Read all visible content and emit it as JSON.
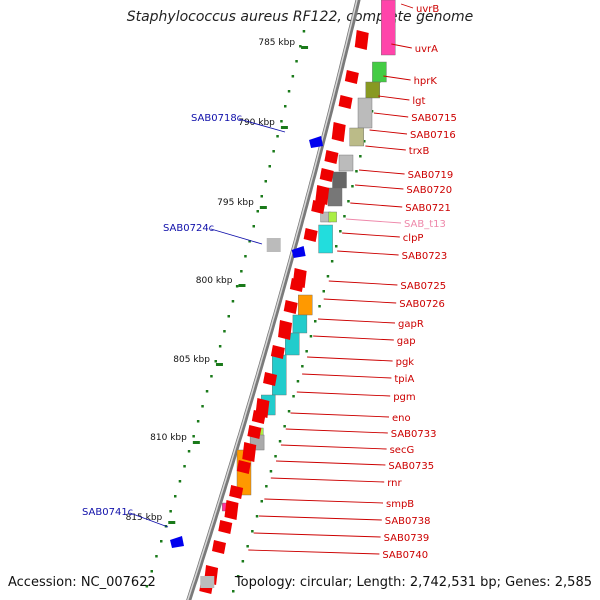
{
  "title": "Staphylococcus aureus RF122, complete genome",
  "footer": {
    "accession": "Accession: NC_007622",
    "topology": "Topology: circular; Length: 2,742,531 bp; Genes: 2,585"
  },
  "colors": {
    "background": "#ffffff",
    "forward_gene": "#ee0000",
    "label_forward": "#cc0000",
    "label_reverse": "#1010aa",
    "trna_label": "#ee88aa",
    "tick": "#1a7a1a",
    "backbone": "#888888"
  },
  "scale_labels": [
    "785 kbp",
    "790 kbp",
    "795 kbp",
    "800 kbp",
    "805 kbp",
    "810 kbp",
    "815 kbp"
  ],
  "genes_right": [
    {
      "label": "uvrB",
      "color": "#cc0000"
    },
    {
      "label": "uvrA",
      "color": "#cc0000"
    },
    {
      "label": "hprK",
      "color": "#cc0000"
    },
    {
      "label": "lgt",
      "color": "#cc0000"
    },
    {
      "label": "SAB0715",
      "color": "#cc0000"
    },
    {
      "label": "SAB0716",
      "color": "#cc0000"
    },
    {
      "label": "trxB",
      "color": "#cc0000"
    },
    {
      "label": "SAB0719",
      "color": "#cc0000"
    },
    {
      "label": "SAB0720",
      "color": "#cc0000"
    },
    {
      "label": "SAB0721",
      "color": "#cc0000"
    },
    {
      "label": "SAB_t13",
      "color": "#ee88aa"
    },
    {
      "label": "clpP",
      "color": "#cc0000"
    },
    {
      "label": "SAB0723",
      "color": "#cc0000"
    },
    {
      "label": "SAB0725",
      "color": "#cc0000"
    },
    {
      "label": "SAB0726",
      "color": "#cc0000"
    },
    {
      "label": "gapR",
      "color": "#cc0000"
    },
    {
      "label": "gap",
      "color": "#cc0000"
    },
    {
      "label": "pgk",
      "color": "#cc0000"
    },
    {
      "label": "tpiA",
      "color": "#cc0000"
    },
    {
      "label": "pgm",
      "color": "#cc0000"
    },
    {
      "label": "eno",
      "color": "#cc0000"
    },
    {
      "label": "SAB0733",
      "color": "#cc0000"
    },
    {
      "label": "secG",
      "color": "#cc0000"
    },
    {
      "label": "SAB0735",
      "color": "#cc0000"
    },
    {
      "label": "rnr",
      "color": "#cc0000"
    },
    {
      "label": "smpB",
      "color": "#cc0000"
    },
    {
      "label": "SAB0738",
      "color": "#cc0000"
    },
    {
      "label": "SAB0739",
      "color": "#cc0000"
    },
    {
      "label": "SAB0740",
      "color": "#cc0000"
    }
  ],
  "genes_left": [
    {
      "label": "SAB0718c",
      "color": "#1010aa"
    },
    {
      "label": "SAB0724c",
      "color": "#1010aa"
    },
    {
      "label": "SAB0741c",
      "color": "#1010aa"
    }
  ]
}
